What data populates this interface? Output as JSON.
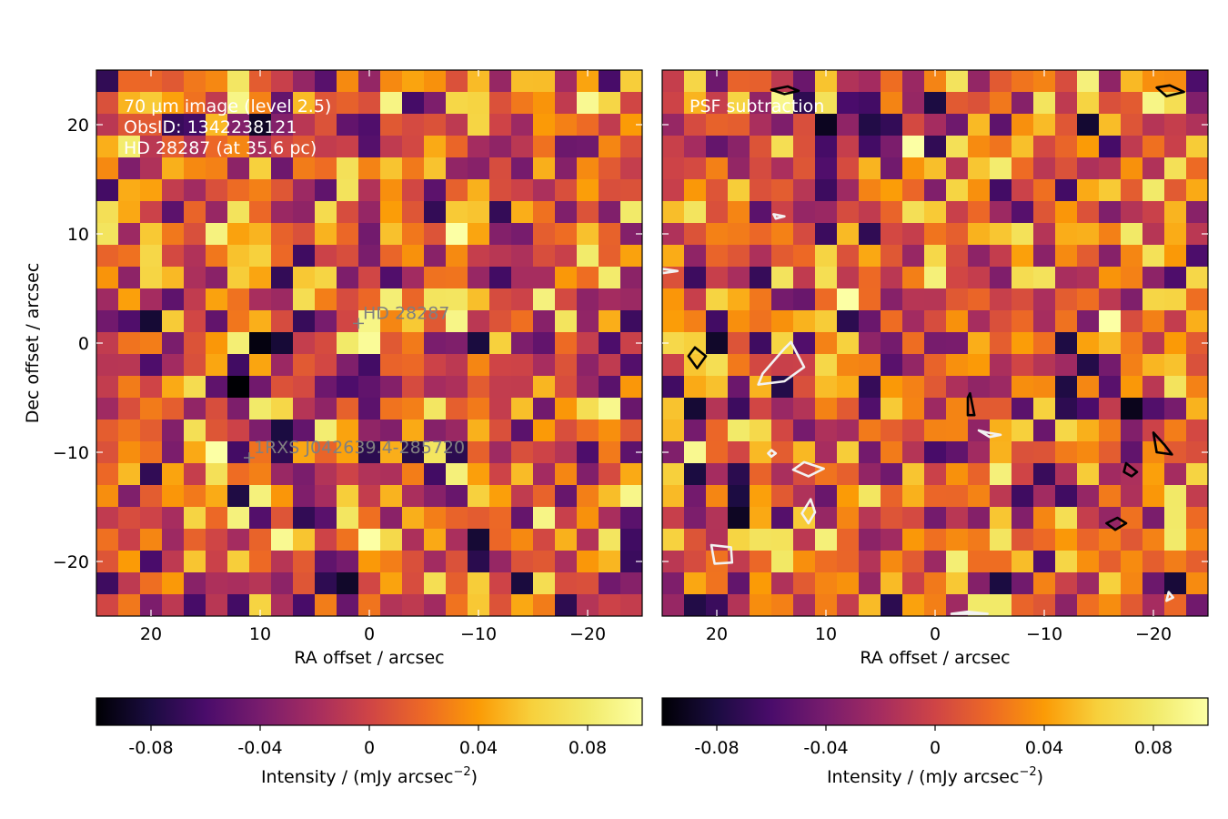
{
  "chart_data": [
    {
      "type": "heatmap",
      "panel": "left",
      "annotation_lines": [
        "70 µm image (level 2.5)",
        "ObsID: 1342238121",
        "HD 28287 (at 35.6 pc)"
      ],
      "xlabel": "RA offset / arcsec",
      "ylabel": "Dec offset / arcsec",
      "xlim": [
        25,
        -25
      ],
      "ylim": [
        -25,
        25
      ],
      "xticks": [
        20,
        10,
        0,
        -10,
        -20
      ],
      "yticks": [
        -20,
        -10,
        0,
        10,
        20
      ],
      "xtick_labels": [
        "20",
        "10",
        "0",
        "−10",
        "−20"
      ],
      "ytick_labels": [
        "−20",
        "−10",
        "0",
        "10",
        "20"
      ],
      "sources": [
        {
          "label": "HD  28287",
          "x": 1.0,
          "y": 1.8
        },
        {
          "label": "1RXS J042639.4-285720",
          "x": 11.0,
          "y": -10.5
        }
      ],
      "colorbar": {
        "label": "Intensity / (mJy arcsec",
        "label_exp": "−2",
        "label_end": ")",
        "range": [
          -0.1,
          0.1
        ],
        "ticks": [
          -0.08,
          -0.04,
          0,
          0.04,
          0.08
        ],
        "tick_labels": [
          "-0.08",
          "-0.04",
          "0",
          "0.04",
          "0.08"
        ]
      }
    },
    {
      "type": "heatmap",
      "panel": "right",
      "annotation_lines": [
        "PSF subtraction"
      ],
      "xlabel": "RA offset / arcsec",
      "xlim": [
        25,
        -25
      ],
      "ylim": [
        -25,
        25
      ],
      "xticks": [
        20,
        10,
        0,
        -10,
        -20
      ],
      "xtick_labels": [
        "20",
        "10",
        "0",
        "−10",
        "−20"
      ],
      "colorbar": {
        "label": "Intensity / (mJy arcsec",
        "label_exp": "−2",
        "label_end": ")",
        "range": [
          -0.1,
          0.1
        ],
        "ticks": [
          -0.08,
          -0.04,
          0,
          0.04,
          0.08
        ],
        "tick_labels": [
          "-0.08",
          "-0.04",
          "0",
          "0.04",
          "0.08"
        ]
      },
      "contours": [
        {
          "color": "#000000",
          "points": [
            [
              15,
              23.2
            ],
            [
              13.5,
              23.5
            ],
            [
              12.5,
              23.1
            ],
            [
              13.8,
              22.8
            ]
          ]
        },
        {
          "color": "#000000",
          "points": [
            [
              -21.5,
              23.6
            ],
            [
              -22.8,
              23.0
            ],
            [
              -21.2,
              22.6
            ],
            [
              -20.3,
              23.4
            ]
          ]
        },
        {
          "color": "#000000",
          "points": [
            [
              22,
              -0.4
            ],
            [
              21,
              -1.2
            ],
            [
              21.8,
              -2.3
            ],
            [
              22.6,
              -1.2
            ]
          ]
        },
        {
          "color": "#000000",
          "points": [
            [
              -3.2,
              -4.6
            ],
            [
              -3.6,
              -6.6
            ],
            [
              -3.0,
              -6.6
            ],
            [
              -3.0,
              -5.0
            ]
          ]
        },
        {
          "color": "#000000",
          "points": [
            [
              -20.0,
              -8.2
            ],
            [
              -20.3,
              -10.0
            ],
            [
              -21.7,
              -10.2
            ],
            [
              -21.0,
              -9.3
            ]
          ]
        },
        {
          "color": "#000000",
          "points": [
            [
              -18.5,
              -11.8
            ],
            [
              -17.5,
              -11.0
            ],
            [
              -17.3,
              -11.8
            ],
            [
              -18.0,
              -12.2
            ]
          ]
        },
        {
          "color": "#000000",
          "points": [
            [
              -15.7,
              -16.5
            ],
            [
              -16.7,
              -16.0
            ],
            [
              -17.5,
              -16.5
            ],
            [
              -16.5,
              -17.1
            ]
          ]
        },
        {
          "color": "#f2f2f2",
          "points": [
            [
              13.2,
              0.1
            ],
            [
              12.0,
              -2.2
            ],
            [
              13.8,
              -3.5
            ],
            [
              16.2,
              -3.8
            ],
            [
              15.8,
              -2.8
            ],
            [
              13.8,
              -0.5
            ]
          ]
        },
        {
          "color": "#f2f2f2",
          "points": [
            [
              14.8,
              11.8
            ],
            [
              13.8,
              11.6
            ],
            [
              14.6,
              11.4
            ]
          ]
        },
        {
          "color": "#f2f2f2",
          "points": [
            [
              25,
              6.8
            ],
            [
              23.6,
              6.6
            ],
            [
              25,
              6.4
            ]
          ]
        },
        {
          "color": "#f2f2f2",
          "points": [
            [
              20.5,
              -18.5
            ],
            [
              18.7,
              -18.7
            ],
            [
              18.6,
              -20.1
            ],
            [
              20.2,
              -20.2
            ]
          ]
        },
        {
          "color": "#f2f2f2",
          "points": [
            [
              11.4,
              -14.3
            ],
            [
              12.2,
              -15.6
            ],
            [
              11.6,
              -16.5
            ],
            [
              11.0,
              -15.5
            ]
          ]
        },
        {
          "color": "#f2f2f2",
          "points": [
            [
              12.0,
              -10.9
            ],
            [
              13.0,
              -11.6
            ],
            [
              11.6,
              -12.2
            ],
            [
              10.2,
              -11.5
            ]
          ]
        },
        {
          "color": "#f2f2f2",
          "points": [
            [
              15.0,
              -9.8
            ],
            [
              14.6,
              -10.1
            ],
            [
              15.0,
              -10.4
            ],
            [
              15.3,
              -10.1
            ]
          ]
        },
        {
          "color": "#f2f2f2",
          "points": [
            [
              -4.0,
              -8.0
            ],
            [
              -5.0,
              -8.6
            ],
            [
              -6.0,
              -8.4
            ],
            [
              -4.8,
              -8.2
            ]
          ]
        },
        {
          "color": "#f2f2f2",
          "points": [
            [
              -1.5,
              -24.8
            ],
            [
              -3.0,
              -24.6
            ],
            [
              -4.8,
              -24.8
            ]
          ]
        },
        {
          "color": "#f2f2f2",
          "points": [
            [
              -21.4,
              -22.8
            ],
            [
              -21.8,
              -23.3
            ],
            [
              -21.2,
              -23.6
            ]
          ]
        }
      ]
    }
  ]
}
